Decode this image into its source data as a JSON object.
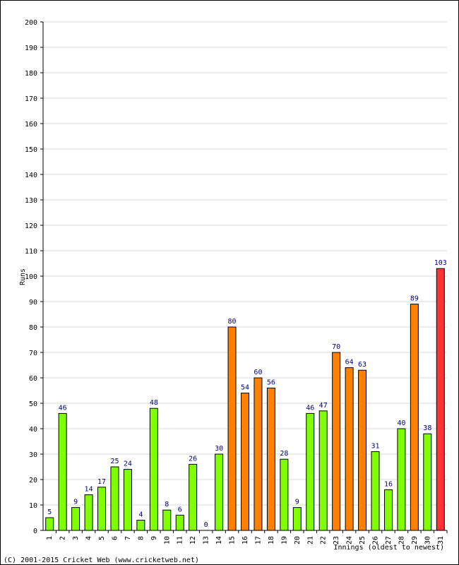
{
  "chart_data": {
    "type": "bar",
    "title": "",
    "xlabel": "Innings (oldest to newest)",
    "ylabel": "Runs",
    "ylim": [
      0,
      200
    ],
    "y_ticks": [
      0,
      10,
      20,
      30,
      40,
      50,
      60,
      70,
      80,
      90,
      100,
      110,
      120,
      130,
      140,
      150,
      160,
      170,
      180,
      190,
      200
    ],
    "categories": [
      "1",
      "2",
      "3",
      "4",
      "5",
      "6",
      "7",
      "8",
      "9",
      "10",
      "11",
      "12",
      "13",
      "14",
      "15",
      "16",
      "17",
      "18",
      "19",
      "20",
      "21",
      "22",
      "23",
      "24",
      "25",
      "26",
      "27",
      "28",
      "29",
      "30",
      "31"
    ],
    "values": [
      5,
      46,
      9,
      14,
      17,
      25,
      24,
      4,
      48,
      8,
      6,
      26,
      0,
      30,
      80,
      54,
      60,
      56,
      28,
      9,
      46,
      47,
      70,
      64,
      63,
      31,
      16,
      40,
      89,
      38,
      103
    ],
    "grid": true,
    "legend": "none",
    "color_rule": {
      "under_50": "#80ff00",
      "fifty_to_99": "#ff8000",
      "hundred_plus": "#ff3333"
    },
    "colors": {
      "bar_outline": "#000000",
      "value_label": "#000080",
      "gridline": "#d8d8d8"
    }
  },
  "footer": {
    "copyright": "(C) 2001-2015 Cricket Web (www.cricketweb.net)"
  }
}
